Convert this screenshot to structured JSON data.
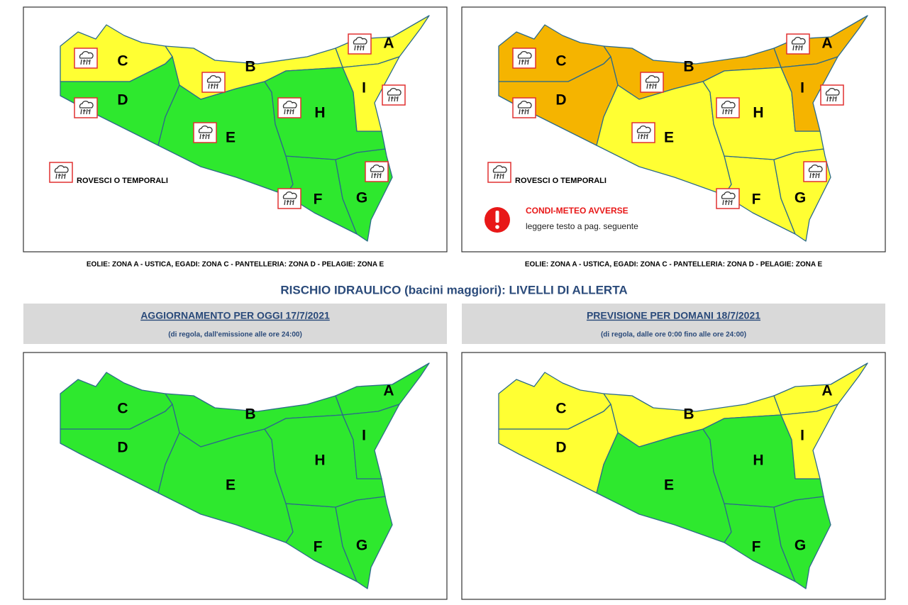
{
  "title": "RISCHIO IDRAULICO (bacini maggiori): LIVELLI DI ALLERTA",
  "headers": [
    {
      "title": "AGGIORNAMENTO PER OGGI 17/7/2021",
      "subtitle": "(di regola, dall'emissione alle ore 24:00)"
    },
    {
      "title": "PREVISIONE PER DOMANI 18/7/2021",
      "subtitle": "(di regola, dalle ore 0:00 fino alle ore 24:00)"
    }
  ],
  "maps": [
    {
      "legend": "ROVESCI O TEMPORALI",
      "footer": "EOLIE: ZONA A - USTICA, EGADI: ZONA C - PANTELLERIA: ZONA D - PELAGIE: ZONA E",
      "zones": [
        {
          "label": "A",
          "color": "#ffff33",
          "icon": true
        },
        {
          "label": "B",
          "color": "#ffff33",
          "icon": true
        },
        {
          "label": "C",
          "color": "#ffff33",
          "icon": true
        },
        {
          "label": "D",
          "color": "#2ee82e",
          "icon": true
        },
        {
          "label": "E",
          "color": "#2ee82e",
          "icon": true
        },
        {
          "label": "F",
          "color": "#2ee82e",
          "icon": true
        },
        {
          "label": "G",
          "color": "#2ee82e",
          "icon": true
        },
        {
          "label": "H",
          "color": "#2ee82e",
          "icon": true
        },
        {
          "label": "I",
          "color": "#ffff33",
          "icon": true
        }
      ]
    },
    {
      "legend": "ROVESCI O TEMPORALI",
      "footer": "EOLIE: ZONA A - USTICA, EGADI: ZONA C - PANTELLERIA: ZONA D - PELAGIE: ZONA E",
      "warning": {
        "title": "CONDI-METEO AVVERSE",
        "text": "leggere testo a pag. seguente"
      },
      "zones": [
        {
          "label": "A",
          "color": "#f5b400",
          "icon": true
        },
        {
          "label": "B",
          "color": "#f5b400",
          "icon": true
        },
        {
          "label": "C",
          "color": "#f5b400",
          "icon": true
        },
        {
          "label": "D",
          "color": "#f5b400",
          "icon": true
        },
        {
          "label": "E",
          "color": "#ffff33",
          "icon": true
        },
        {
          "label": "F",
          "color": "#ffff33",
          "icon": true
        },
        {
          "label": "G",
          "color": "#ffff33",
          "icon": true
        },
        {
          "label": "H",
          "color": "#ffff33",
          "icon": true
        },
        {
          "label": "I",
          "color": "#f5b400",
          "icon": true
        }
      ]
    },
    {
      "zones": [
        {
          "label": "A",
          "color": "#2ee82e"
        },
        {
          "label": "B",
          "color": "#2ee82e"
        },
        {
          "label": "C",
          "color": "#2ee82e"
        },
        {
          "label": "D",
          "color": "#2ee82e"
        },
        {
          "label": "E",
          "color": "#2ee82e"
        },
        {
          "label": "F",
          "color": "#2ee82e"
        },
        {
          "label": "G",
          "color": "#2ee82e"
        },
        {
          "label": "H",
          "color": "#2ee82e"
        },
        {
          "label": "I",
          "color": "#2ee82e"
        }
      ]
    },
    {
      "zones": [
        {
          "label": "A",
          "color": "#ffff33"
        },
        {
          "label": "B",
          "color": "#ffff33"
        },
        {
          "label": "C",
          "color": "#ffff33"
        },
        {
          "label": "D",
          "color": "#ffff33"
        },
        {
          "label": "E",
          "color": "#2ee82e"
        },
        {
          "label": "F",
          "color": "#2ee82e"
        },
        {
          "label": "G",
          "color": "#2ee82e"
        },
        {
          "label": "H",
          "color": "#2ee82e"
        },
        {
          "label": "I",
          "color": "#ffff33"
        }
      ]
    }
  ]
}
